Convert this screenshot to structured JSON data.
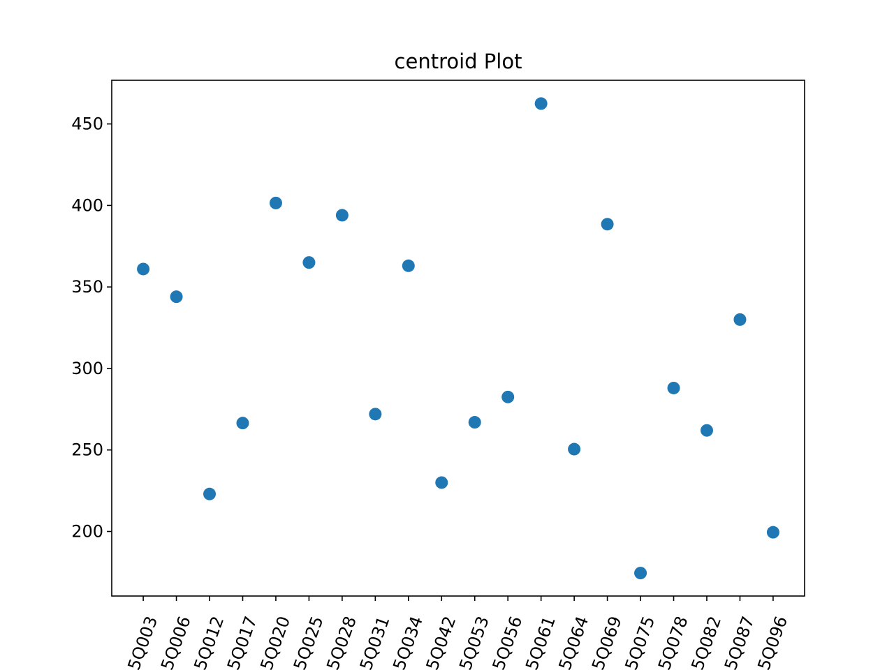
{
  "chart_data": {
    "type": "scatter",
    "title": "centroid Plot",
    "xlabel": "",
    "ylabel": "",
    "categories": [
      "5Q003",
      "5Q006",
      "5Q012",
      "5Q017",
      "5Q020",
      "5Q025",
      "5Q028",
      "5Q031",
      "5Q034",
      "5Q042",
      "5Q053",
      "5Q056",
      "5Q061",
      "5Q064",
      "5Q069",
      "5Q075",
      "5Q078",
      "5Q082",
      "5Q087",
      "5Q096"
    ],
    "values": [
      361,
      344,
      223,
      266.5,
      401.5,
      365,
      394,
      272,
      363,
      230,
      267,
      282.5,
      462.5,
      250.5,
      388.5,
      174.5,
      288,
      262,
      330,
      199.5
    ],
    "ylim": [
      160.4,
      476.8
    ],
    "yticks": [
      200,
      250,
      300,
      350,
      400,
      450
    ],
    "grid": false,
    "marker_color": "#1f77b4"
  }
}
